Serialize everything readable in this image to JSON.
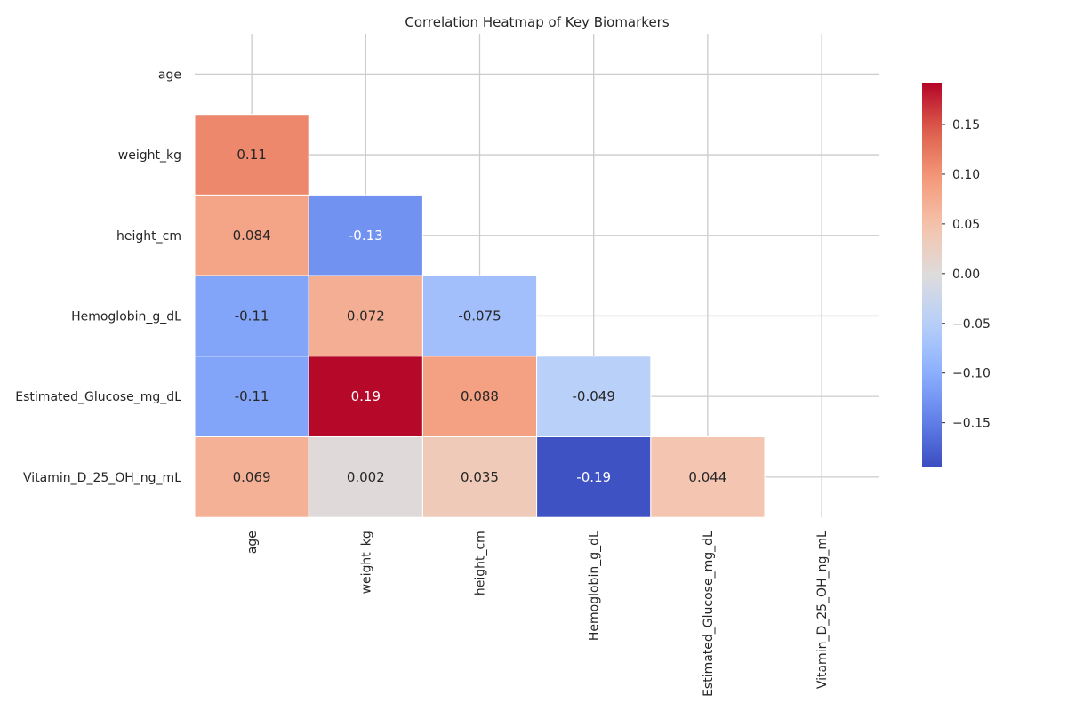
{
  "chart_data": {
    "type": "heatmap",
    "title": "Correlation Heatmap of Key Biomarkers",
    "xlabel": "",
    "ylabel": "",
    "rows": [
      "age",
      "weight_kg",
      "height_cm",
      "Hemoglobin_g_dL",
      "Estimated_Glucose_mg_dL",
      "Vitamin_D_25_OH_ng_mL"
    ],
    "columns": [
      "age",
      "weight_kg",
      "height_cm",
      "Hemoglobin_g_dL",
      "Estimated_Glucose_mg_dL",
      "Vitamin_D_25_OH_ng_mL"
    ],
    "mask": "upper-triangle-including-diagonal",
    "cells": [
      {
        "row": 1,
        "col": 0,
        "value": 0.11,
        "label": "0.11"
      },
      {
        "row": 2,
        "col": 0,
        "value": 0.084,
        "label": "0.084"
      },
      {
        "row": 2,
        "col": 1,
        "value": -0.13,
        "label": "-0.13"
      },
      {
        "row": 3,
        "col": 0,
        "value": -0.11,
        "label": "-0.11"
      },
      {
        "row": 3,
        "col": 1,
        "value": 0.072,
        "label": "0.072"
      },
      {
        "row": 3,
        "col": 2,
        "value": -0.075,
        "label": "-0.075"
      },
      {
        "row": 4,
        "col": 0,
        "value": -0.11,
        "label": "-0.11"
      },
      {
        "row": 4,
        "col": 1,
        "value": 0.19,
        "label": "0.19"
      },
      {
        "row": 4,
        "col": 2,
        "value": 0.088,
        "label": "0.088"
      },
      {
        "row": 4,
        "col": 3,
        "value": -0.049,
        "label": "-0.049"
      },
      {
        "row": 5,
        "col": 0,
        "value": 0.069,
        "label": "0.069"
      },
      {
        "row": 5,
        "col": 1,
        "value": 0.002,
        "label": "0.002"
      },
      {
        "row": 5,
        "col": 2,
        "value": 0.035,
        "label": "0.035"
      },
      {
        "row": 5,
        "col": 3,
        "value": -0.19,
        "label": "-0.19"
      },
      {
        "row": 5,
        "col": 4,
        "value": 0.044,
        "label": "0.044"
      }
    ],
    "colormap": "coolwarm",
    "vmin": -0.195,
    "vmax": 0.192,
    "colorbar_ticks": [
      0.15,
      0.1,
      0.05,
      0.0,
      -0.05,
      -0.1,
      -0.15
    ],
    "colorbar_tick_labels": [
      "0.15",
      "0.10",
      "0.05",
      "0.00",
      "−0.05",
      "−0.10",
      "−0.15"
    ],
    "grid": true,
    "colorbar_position": "right"
  }
}
